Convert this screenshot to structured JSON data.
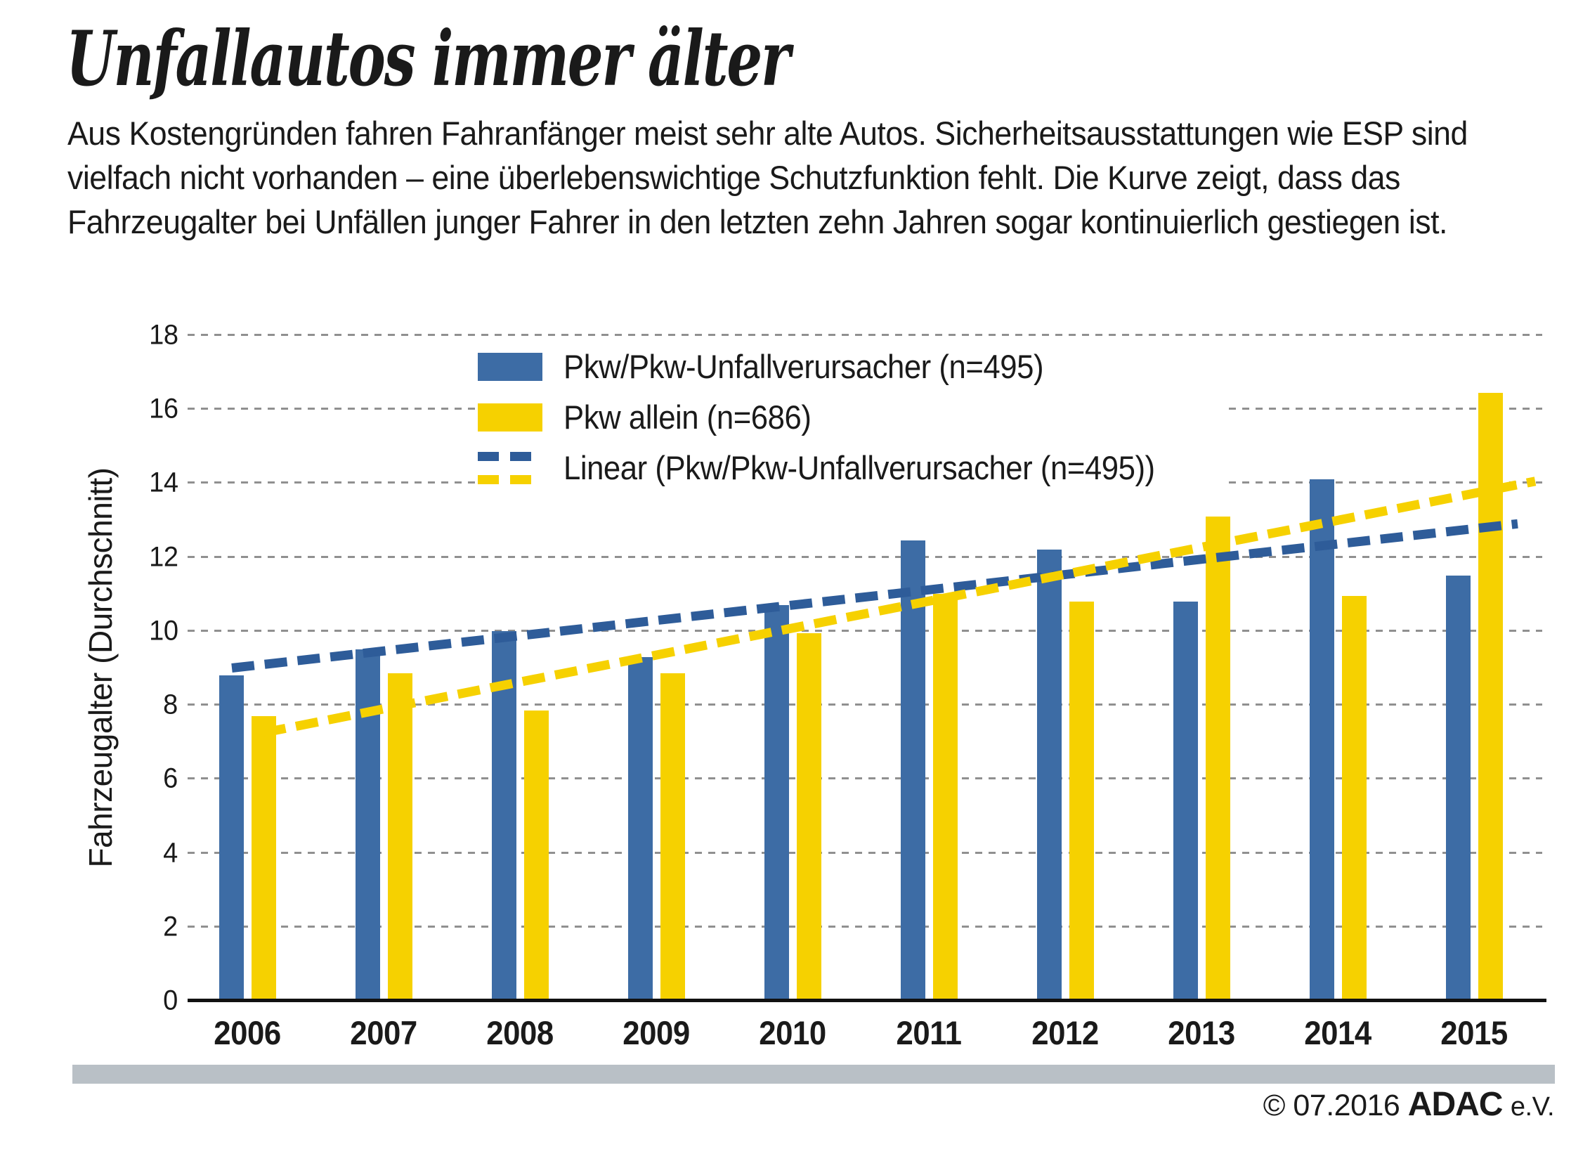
{
  "title": "Unfallautos immer älter",
  "subtitle_lines": [
    "Aus Kostengründen fahren Fahranfänger meist sehr alte Autos. Sicherheitsausstattungen wie ESP sind",
    "vielfach nicht vorhanden – eine überlebenswichtige Schutzfunktion fehlt. Die Kurve zeigt, dass das",
    "Fahrzeugalter bei Unfällen junger Fahrer in den letzten zehn Jahren sogar kontinuierlich gestiegen ist."
  ],
  "footer": {
    "copyright_prefix": "© 07.2016",
    "org": "ADAC",
    "org_suffix": "e.V."
  },
  "chart_data": {
    "type": "bar",
    "categories": [
      "2006",
      "2007",
      "2008",
      "2009",
      "2010",
      "2011",
      "2012",
      "2013",
      "2014",
      "2015"
    ],
    "series": [
      {
        "name": "Pkw/Pkw-Unfallverursacher (n=495)",
        "color": "#3D6CA5",
        "values": [
          8.8,
          9.5,
          10.0,
          9.3,
          10.7,
          12.45,
          12.2,
          10.8,
          14.1,
          11.5
        ]
      },
      {
        "name": "Pkw allein (n=686)",
        "color": "#F6D100",
        "values": [
          7.7,
          8.85,
          7.85,
          8.85,
          9.95,
          11.0,
          10.8,
          13.1,
          10.95,
          16.45
        ]
      }
    ],
    "trendlines": [
      {
        "name": "Linear (Pkw/Pkw-Unfallverursacher (n=495))",
        "color": "#2E5C99",
        "start": 9.0,
        "end": 12.9
      },
      {
        "name": "",
        "color": "#F6D100",
        "start": 7.25,
        "end": 14.05
      }
    ],
    "ylabel": "Fahrzeugalter (Durchschnitt)",
    "ylim": [
      0,
      18
    ],
    "ytick_step": 2,
    "legend_position": "top-center",
    "grid": "dashed-horizontal",
    "colors": {
      "bar_blue": "#3D6CA5",
      "bar_yellow": "#F6D100",
      "trend_blue": "#2E5C99",
      "trend_yellow": "#F6D100",
      "gridline": "#909090",
      "axis": "#111111",
      "divider_bar": "#b9c0c6"
    }
  }
}
